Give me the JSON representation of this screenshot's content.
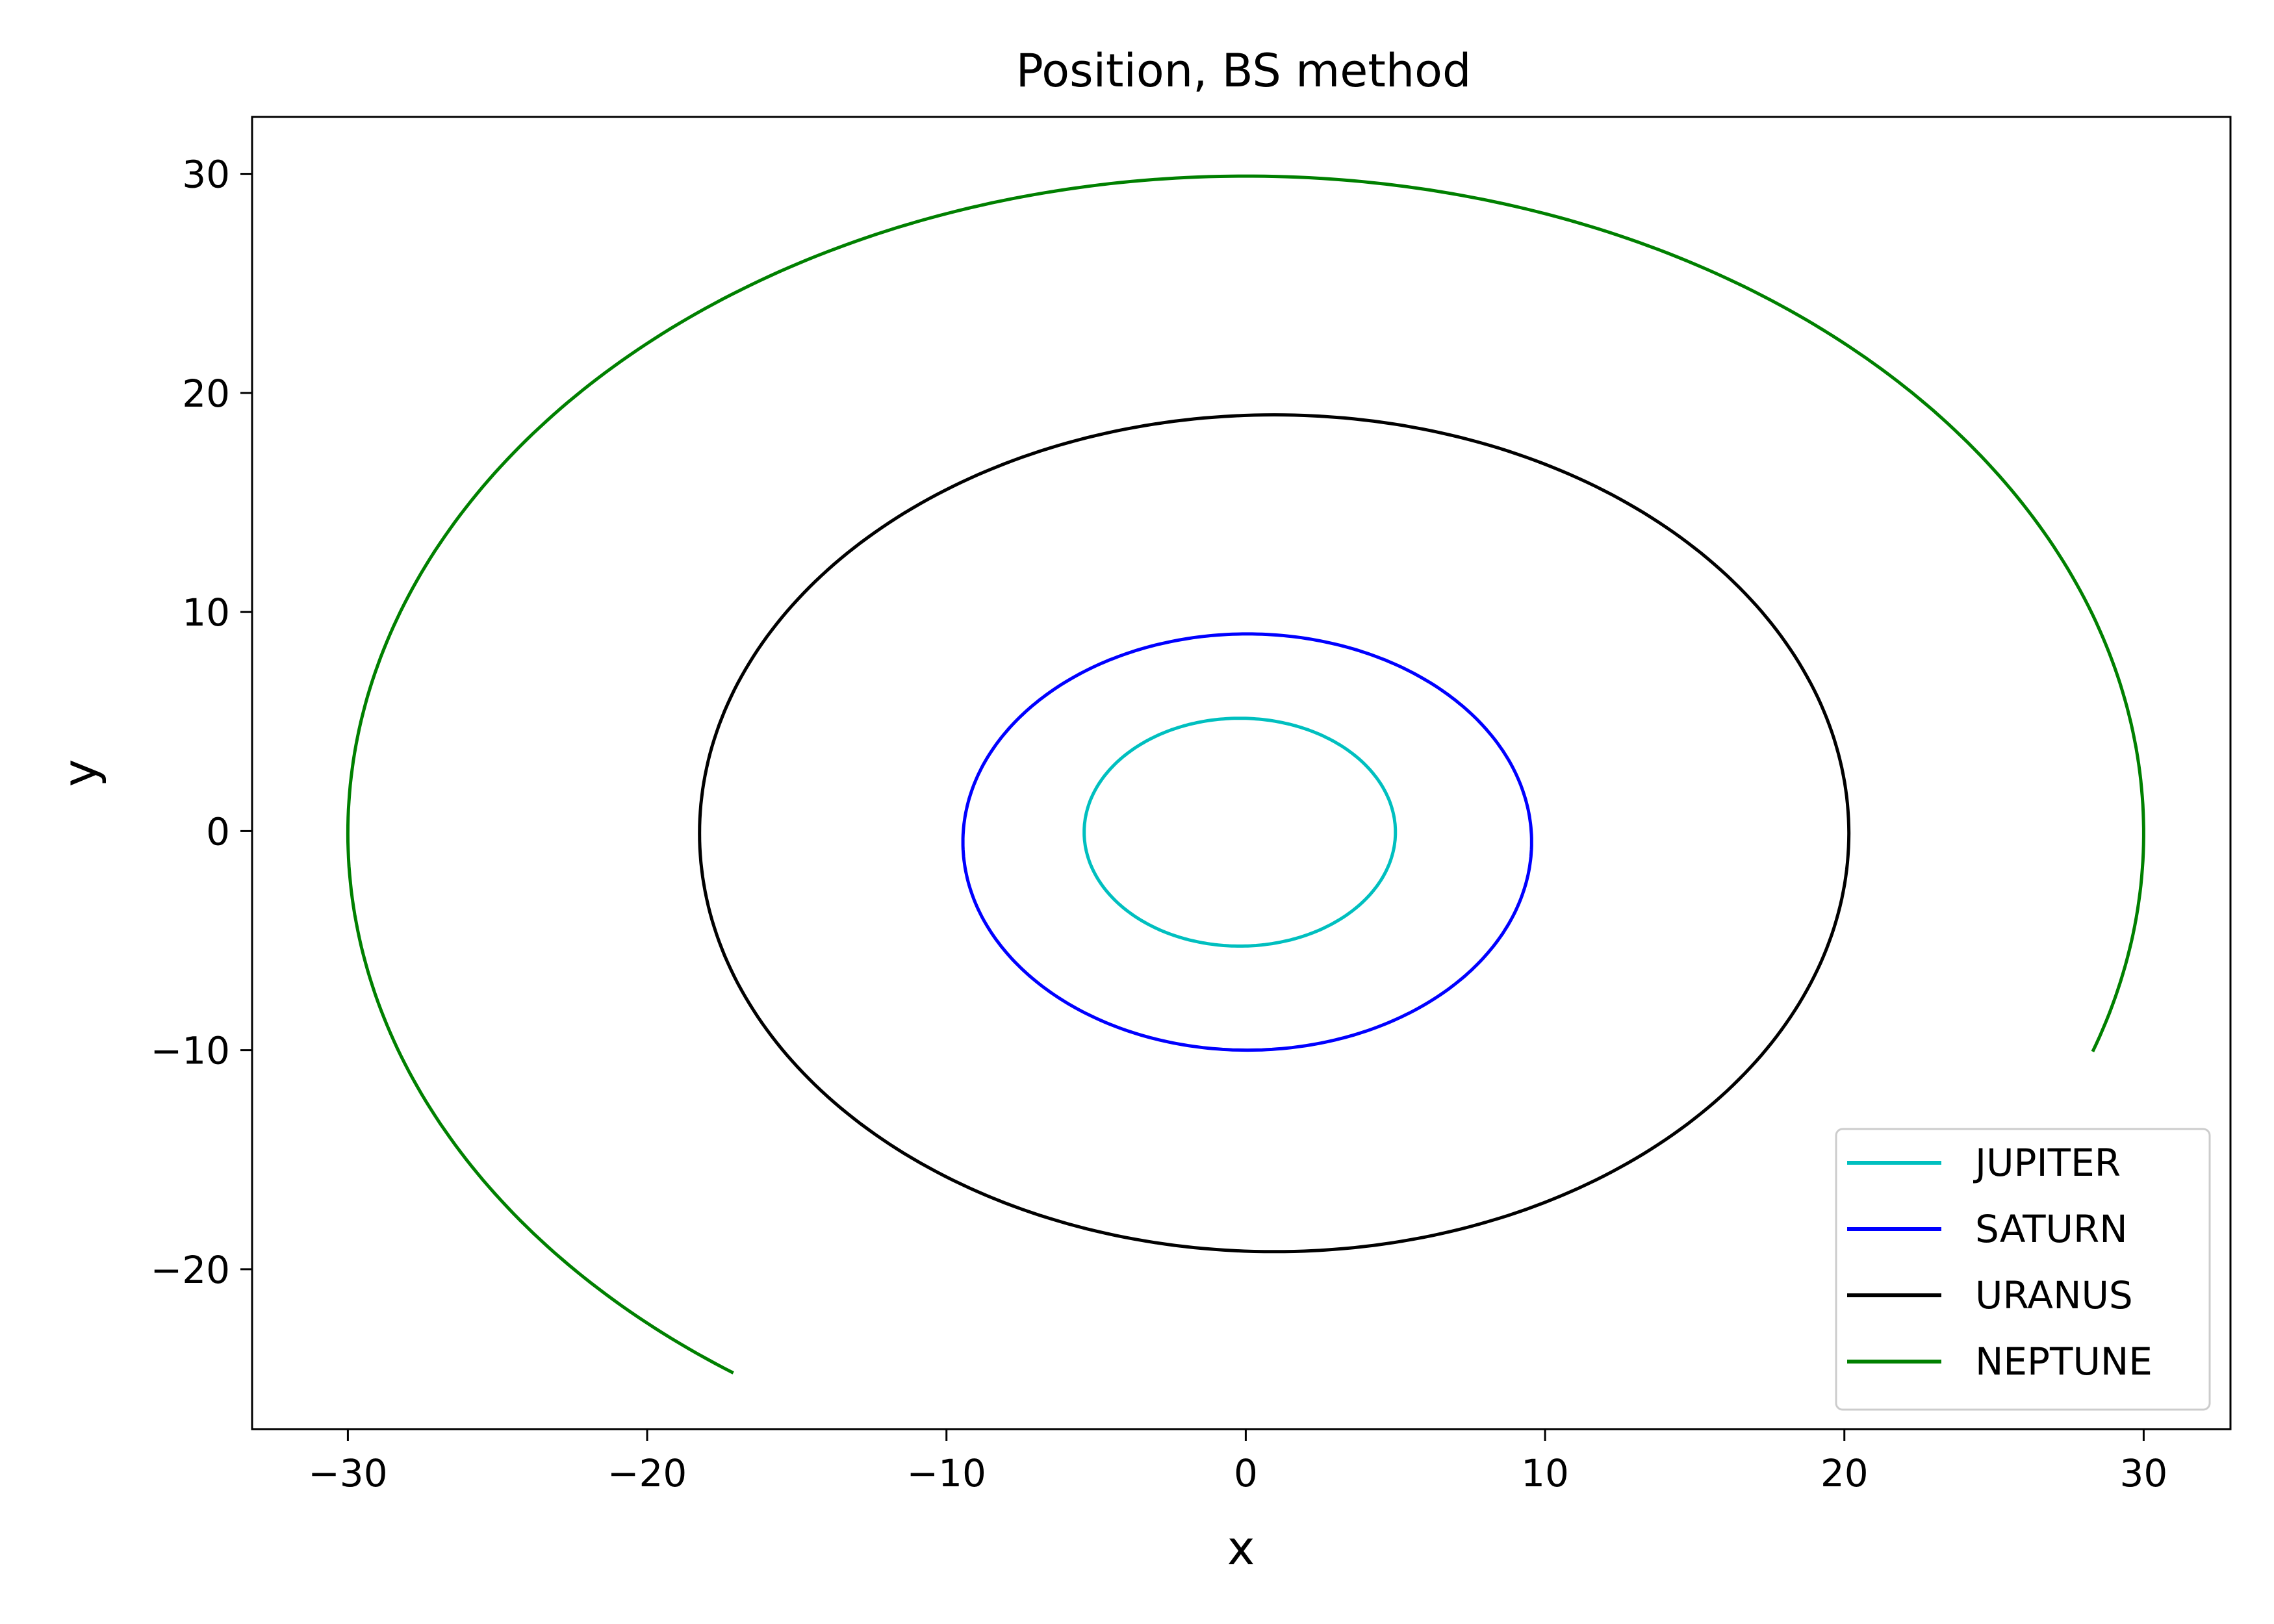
{
  "chart_data": {
    "type": "line",
    "title": "Position, BS method",
    "xlabel": "x",
    "ylabel": "y",
    "xlim": [
      -33.2,
      32.9
    ],
    "ylim": [
      -27.3,
      32.6
    ],
    "x_ticks": [
      -30,
      -20,
      -10,
      0,
      10,
      20,
      30
    ],
    "y_ticks": [
      -20,
      -10,
      0,
      10,
      20,
      30
    ],
    "x_tick_labels": [
      "−30",
      "−20",
      "−10",
      "0",
      "10",
      "20",
      "30"
    ],
    "y_tick_labels": [
      "−20",
      "−10",
      "0",
      "10",
      "20",
      "30"
    ],
    "grid": false,
    "legend_position": "lower right",
    "series": [
      {
        "name": "JUPITER",
        "color": "#00bfbf",
        "center": [
          -0.2,
          -0.05
        ],
        "rx": 5.2,
        "ry": 5.2,
        "theta_start_deg": 0,
        "theta_end_deg": 360
      },
      {
        "name": "SATURN",
        "color": "#0000ff",
        "center": [
          0.05,
          -0.5
        ],
        "rx": 9.5,
        "ry": 9.5,
        "theta_start_deg": 0,
        "theta_end_deg": 360
      },
      {
        "name": "URANUS",
        "color": "#000000",
        "center": [
          0.95,
          -0.1
        ],
        "rx": 19.2,
        "ry": 19.1,
        "theta_start_deg": 0,
        "theta_end_deg": 360
      },
      {
        "name": "NEPTUNE",
        "color": "#008000",
        "center": [
          0.0,
          -0.1
        ],
        "rx": 30.0,
        "ry": 30.0,
        "theta_start_deg": -19.4,
        "theta_end_deg": 235.2
      }
    ]
  }
}
